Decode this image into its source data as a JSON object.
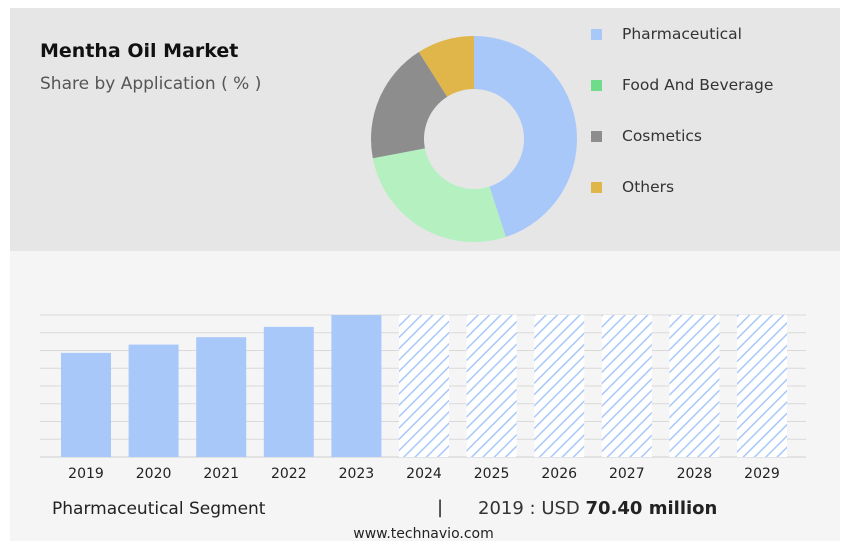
{
  "header": {
    "title": "Mentha Oil Market",
    "subtitle": "Share by Application ( % )"
  },
  "legend": [
    {
      "label": "Pharmaceutical",
      "color": "#a8c8fa"
    },
    {
      "label": "Food And Beverage",
      "color": "#6fdc8c"
    },
    {
      "label": "Cosmetics",
      "color": "#8d8d8d"
    },
    {
      "label": "Others",
      "color": "#e0b54a"
    }
  ],
  "chart_data": [
    {
      "type": "pie",
      "donut": true,
      "labels": [
        "Pharmaceutical",
        "Food And Beverage",
        "Cosmetics",
        "Others"
      ],
      "values": [
        45,
        27,
        19,
        9
      ],
      "colors": [
        "#a8c8fa",
        "#b5f0c0",
        "#8d8d8d",
        "#e0b54a"
      ]
    },
    {
      "type": "bar",
      "categories": [
        "2019",
        "2020",
        "2021",
        "2022",
        "2023",
        "2024",
        "2025",
        "2026",
        "2027",
        "2028",
        "2029"
      ],
      "values": [
        70.4,
        76.0,
        81.0,
        88.0,
        96.0,
        96.0,
        96.0,
        96.0,
        96.0,
        96.0,
        96.0
      ],
      "forecast_from": "2024",
      "ylim": [
        0,
        96
      ],
      "grid": true,
      "color": "#a8c8fa"
    }
  ],
  "footer": {
    "segment": "Pharmaceutical Segment",
    "separator": "|",
    "year_label": "2019 : USD",
    "value": "70.40 million",
    "website": "www.technavio.com"
  }
}
